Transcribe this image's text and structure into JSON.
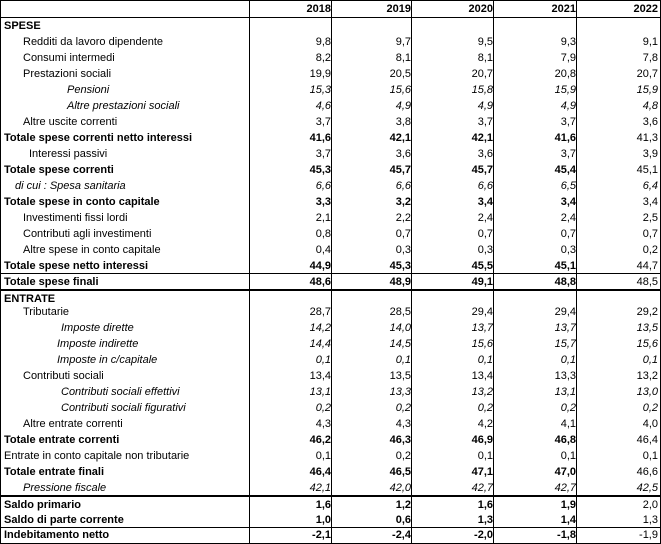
{
  "years": [
    "2018",
    "2019",
    "2020",
    "2021",
    "2022"
  ],
  "rows": [
    {
      "label": "SPESE",
      "values": []
    },
    {
      "label": "Redditi da lavoro dipendente",
      "values": [
        "9,8",
        "9,7",
        "9,5",
        "9,3",
        "9,1"
      ]
    },
    {
      "label": "Consumi intermedi",
      "values": [
        "8,2",
        "8,1",
        "8,1",
        "7,9",
        "7,8"
      ]
    },
    {
      "label": "Prestazioni sociali",
      "values": [
        "19,9",
        "20,5",
        "20,7",
        "20,8",
        "20,7"
      ]
    },
    {
      "label": "Pensioni",
      "values": [
        "15,3",
        "15,6",
        "15,8",
        "15,9",
        "15,9"
      ]
    },
    {
      "label": "Altre prestazioni sociali",
      "values": [
        "4,6",
        "4,9",
        "4,9",
        "4,9",
        "4,8"
      ]
    },
    {
      "label": "Altre uscite correnti",
      "values": [
        "3,7",
        "3,8",
        "3,7",
        "3,7",
        "3,6"
      ]
    },
    {
      "label": "Totale spese correnti netto interessi",
      "values": [
        "41,6",
        "42,1",
        "42,1",
        "41,6",
        "41,3"
      ]
    },
    {
      "label": "Interessi passivi",
      "values": [
        "3,7",
        "3,6",
        "3,6",
        "3,7",
        "3,9"
      ]
    },
    {
      "label": "Totale spese correnti",
      "values": [
        "45,3",
        "45,7",
        "45,7",
        "45,4",
        "45,1"
      ]
    },
    {
      "label": "di cui : Spesa sanitaria",
      "values": [
        "6,6",
        "6,6",
        "6,6",
        "6,5",
        "6,4"
      ]
    },
    {
      "label": "Totale spese in conto capitale",
      "values": [
        "3,3",
        "3,2",
        "3,4",
        "3,4",
        "3,4"
      ]
    },
    {
      "label": "Investimenti fissi lordi",
      "values": [
        "2,1",
        "2,2",
        "2,4",
        "2,4",
        "2,5"
      ]
    },
    {
      "label": "Contributi agli investimenti",
      "values": [
        "0,8",
        "0,7",
        "0,7",
        "0,7",
        "0,7"
      ]
    },
    {
      "label": "Altre spese in conto capitale",
      "values": [
        "0,4",
        "0,3",
        "0,3",
        "0,3",
        "0,2"
      ]
    },
    {
      "label": "Totale spese netto interessi",
      "values": [
        "44,9",
        "45,3",
        "45,5",
        "45,1",
        "44,7"
      ]
    },
    {
      "label": "Totale spese finali",
      "values": [
        "48,6",
        "48,9",
        "49,1",
        "48,8",
        "48,5"
      ]
    },
    {
      "label": "ENTRATE",
      "values": []
    },
    {
      "label": "Tributarie",
      "values": [
        "28,7",
        "28,5",
        "29,4",
        "29,4",
        "29,2"
      ]
    },
    {
      "label": "Imposte dirette",
      "values": [
        "14,2",
        "14,0",
        "13,7",
        "13,7",
        "13,5"
      ]
    },
    {
      "label": "Imposte indirette",
      "values": [
        "14,4",
        "14,5",
        "15,6",
        "15,7",
        "15,6"
      ]
    },
    {
      "label": "Imposte in c/capitale",
      "values": [
        "0,1",
        "0,1",
        "0,1",
        "0,1",
        "0,1"
      ]
    },
    {
      "label": "Contributi sociali",
      "values": [
        "13,4",
        "13,5",
        "13,4",
        "13,3",
        "13,2"
      ]
    },
    {
      "label": "Contributi sociali effettivi",
      "values": [
        "13,1",
        "13,3",
        "13,2",
        "13,1",
        "13,0"
      ]
    },
    {
      "label": "Contributi sociali figurativi",
      "values": [
        "0,2",
        "0,2",
        "0,2",
        "0,2",
        "0,2"
      ]
    },
    {
      "label": "Altre entrate correnti",
      "values": [
        "4,3",
        "4,3",
        "4,2",
        "4,1",
        "4,0"
      ]
    },
    {
      "label": "Totale entrate correnti",
      "values": [
        "46,2",
        "46,3",
        "46,9",
        "46,8",
        "46,4"
      ]
    },
    {
      "label": "Entrate in conto capitale non tributarie",
      "values": [
        "0,1",
        "0,2",
        "0,1",
        "0,1",
        "0,1"
      ]
    },
    {
      "label": "Totale entrate finali",
      "values": [
        "46,4",
        "46,5",
        "47,1",
        "47,0",
        "46,6"
      ]
    },
    {
      "label": "Pressione fiscale",
      "values": [
        "42,1",
        "42,0",
        "42,7",
        "42,7",
        "42,5"
      ]
    },
    {
      "label": "Saldo primario",
      "values": [
        "1,6",
        "1,2",
        "1,6",
        "1,9",
        "2,0"
      ]
    },
    {
      "label": "Saldo di parte corrente",
      "values": [
        "1,0",
        "0,6",
        "1,3",
        "1,4",
        "1,3"
      ]
    },
    {
      "label": "Indebitamento netto",
      "values": [
        "-2,1",
        "-2,4",
        "-2,0",
        "-1,8",
        "-1,9"
      ]
    }
  ]
}
